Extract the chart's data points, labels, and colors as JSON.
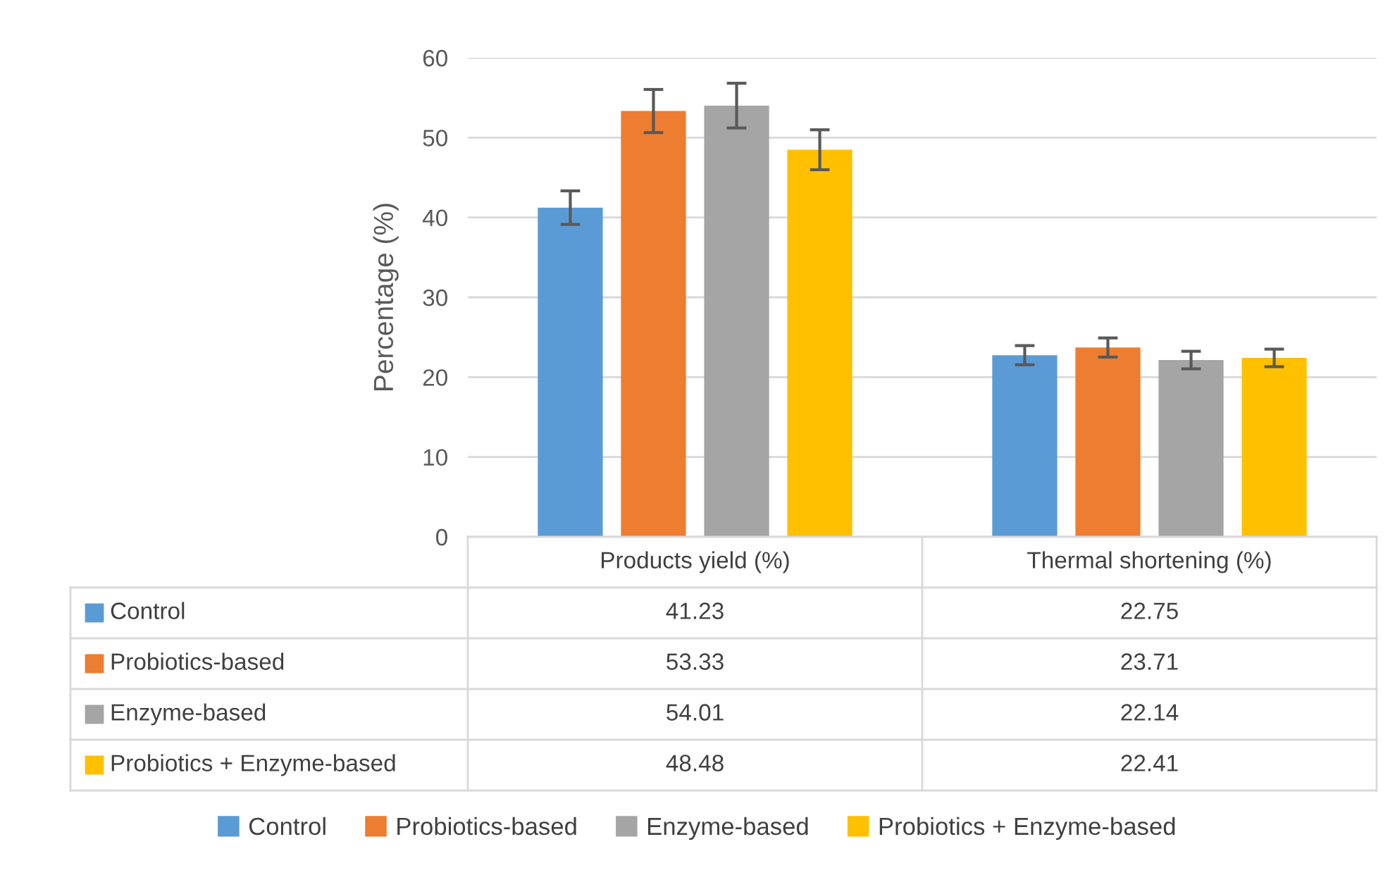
{
  "chart_data": {
    "type": "bar",
    "ylabel": "Percentage (%)",
    "categories": [
      "Products yield (%)",
      "Thermal shortening (%)"
    ],
    "series": [
      {
        "name": "Control",
        "color": "#5b9bd5",
        "values": [
          41.23,
          22.75
        ],
        "errors": [
          2.1,
          1.2
        ]
      },
      {
        "name": "Probiotics-based",
        "color": "#ed7d31",
        "values": [
          53.33,
          23.71
        ],
        "errors": [
          2.7,
          1.2
        ]
      },
      {
        "name": "Enzyme-based",
        "color": "#a5a5a5",
        "values": [
          54.01,
          22.14
        ],
        "errors": [
          2.8,
          1.1
        ]
      },
      {
        "name": "Probiotics + Enzyme-based",
        "color": "#ffc000",
        "values": [
          48.48,
          22.41
        ],
        "errors": [
          2.5,
          1.1
        ]
      }
    ],
    "ylim": [
      0,
      60
    ],
    "yticks": [
      0,
      10,
      20,
      30,
      40,
      50,
      60
    ],
    "grid": "y",
    "legend": "bottom",
    "data_labels": true
  }
}
